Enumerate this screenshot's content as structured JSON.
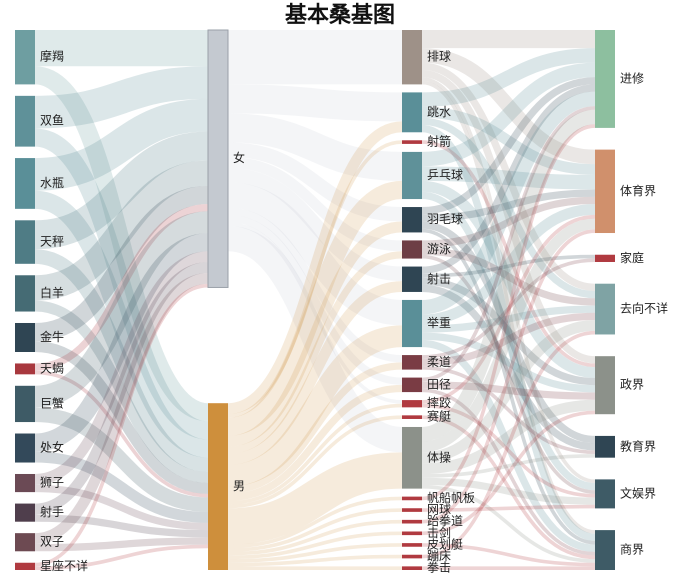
{
  "chart_data": {
    "type": "sankey",
    "title": "基本桑基图",
    "columns": [
      [
        "摩羯",
        "双鱼",
        "水瓶",
        "天秤",
        "白羊",
        "金牛",
        "天蝎",
        "巨蟹",
        "处女",
        "狮子",
        "射手",
        "双子",
        "星座不详"
      ],
      [
        "女",
        "男"
      ],
      [
        "排球",
        "跳水",
        "射箭",
        "乒乓球",
        "羽毛球",
        "游泳",
        "射击",
        "举重",
        "柔道",
        "田径",
        "摔跤",
        "赛艇",
        "体操",
        "帆船帆板",
        "网球",
        "跆拳道",
        "击剑",
        "皮划艇",
        "蹦床",
        "拳击"
      ],
      [
        "进修",
        "体育界",
        "家庭",
        "去向不详",
        "政界",
        "教育界",
        "文娱界",
        "商界"
      ]
    ],
    "node_colors": {
      "摩羯": "#6e9ea1",
      "双鱼": "#5f9199",
      "水瓶": "#5a8f98",
      "天秤": "#4f7c85",
      "白羊": "#456b74",
      "金牛": "#2f4553",
      "天蝎": "#a8383e",
      "巨蟹": "#3e5b66",
      "处女": "#33495a",
      "狮子": "#6b4a55",
      "射手": "#4f3e4c",
      "双子": "#6d4a52",
      "星座不详": "#b03a40",
      "女": "#c4c9d0",
      "男": "#ce8f3c",
      "排球": "#9e9188",
      "跳水": "#5a8f98",
      "射箭": "#b03a40",
      "乒乓球": "#5f9199",
      "羽毛球": "#2f4553",
      "游泳": "#6d3e45",
      "射击": "#2f4553",
      "举重": "#5a8f98",
      "柔道": "#7a3c44",
      "田径": "#7a3c44",
      "摔跤": "#b03a40",
      "赛艇": "#b03a40",
      "体操": "#8c918a",
      "帆船帆板": "#b03a40",
      "网球": "#b03a40",
      "跆拳道": "#b03a40",
      "击剑": "#b03a40",
      "皮划艇": "#b03a40",
      "蹦床": "#b03a40",
      "拳击": "#b03a40",
      "进修": "#8dbf9f",
      "体育界": "#d0906c",
      "家庭": "#b03a40",
      "去向不详": "#7fa3a4",
      "政界": "#8c918a",
      "教育界": "#2f4553",
      "文娱界": "#3e5b66",
      "商界": "#3e5b66"
    },
    "links": [
      [
        "摩羯",
        "女",
        10
      ],
      [
        "摩羯",
        "男",
        5
      ],
      [
        "双鱼",
        "女",
        9
      ],
      [
        "双鱼",
        "男",
        5
      ],
      [
        "水瓶",
        "女",
        9
      ],
      [
        "水瓶",
        "男",
        5
      ],
      [
        "天秤",
        "女",
        8
      ],
      [
        "天秤",
        "男",
        4
      ],
      [
        "白羊",
        "女",
        7
      ],
      [
        "白羊",
        "男",
        3
      ],
      [
        "金牛",
        "女",
        5
      ],
      [
        "金牛",
        "男",
        3
      ],
      [
        "天蝎",
        "女",
        2
      ],
      [
        "天蝎",
        "男",
        1
      ],
      [
        "巨蟹",
        "女",
        6
      ],
      [
        "巨蟹",
        "男",
        4
      ],
      [
        "处女",
        "女",
        5
      ],
      [
        "处女",
        "男",
        3
      ],
      [
        "狮子",
        "女",
        3
      ],
      [
        "狮子",
        "男",
        2
      ],
      [
        "射手",
        "女",
        3
      ],
      [
        "射手",
        "男",
        2
      ],
      [
        "双子",
        "女",
        3
      ],
      [
        "双子",
        "男",
        2
      ],
      [
        "星座不详",
        "女",
        1
      ],
      [
        "星座不详",
        "男",
        1
      ],
      [
        "女",
        "排球",
        15
      ],
      [
        "女",
        "跳水",
        8
      ],
      [
        "女",
        "乒乓球",
        8
      ],
      [
        "女",
        "羽毛球",
        4
      ],
      [
        "女",
        "游泳",
        3
      ],
      [
        "女",
        "射击",
        4
      ],
      [
        "女",
        "举重",
        7
      ],
      [
        "女",
        "柔道",
        2
      ],
      [
        "女",
        "田径",
        2
      ],
      [
        "女",
        "摔跤",
        1
      ],
      [
        "女",
        "体操",
        7
      ],
      [
        "男",
        "跳水",
        3
      ],
      [
        "男",
        "射箭",
        1
      ],
      [
        "男",
        "乒乓球",
        5
      ],
      [
        "男",
        "羽毛球",
        3
      ],
      [
        "男",
        "游泳",
        2
      ],
      [
        "男",
        "射击",
        3
      ],
      [
        "男",
        "举重",
        6
      ],
      [
        "男",
        "柔道",
        2
      ],
      [
        "男",
        "田径",
        2
      ],
      [
        "男",
        "摔跤",
        1
      ],
      [
        "男",
        "赛艇",
        1
      ],
      [
        "男",
        "体操",
        10
      ],
      [
        "男",
        "帆船帆板",
        1
      ],
      [
        "男",
        "网球",
        1
      ],
      [
        "男",
        "跆拳道",
        1
      ],
      [
        "男",
        "击剑",
        1
      ],
      [
        "男",
        "皮划艇",
        1
      ],
      [
        "男",
        "蹦床",
        1
      ],
      [
        "男",
        "拳击",
        1
      ],
      [
        "排球",
        "进修",
        5
      ],
      [
        "排球",
        "体育界",
        4
      ],
      [
        "排球",
        "去向不详",
        2
      ],
      [
        "排球",
        "政界",
        2
      ],
      [
        "排球",
        "文娱界",
        1
      ],
      [
        "排球",
        "商界",
        1
      ],
      [
        "跳水",
        "进修",
        4
      ],
      [
        "跳水",
        "体育界",
        3
      ],
      [
        "跳水",
        "去向不详",
        2
      ],
      [
        "跳水",
        "商界",
        2
      ],
      [
        "射箭",
        "政界",
        1
      ],
      [
        "乒乓球",
        "进修",
        4
      ],
      [
        "乒乓球",
        "体育界",
        4
      ],
      [
        "乒乓球",
        "政界",
        3
      ],
      [
        "乒乓球",
        "文娱界",
        2
      ],
      [
        "羽毛球",
        "进修",
        2
      ],
      [
        "羽毛球",
        "体育界",
        2
      ],
      [
        "羽毛球",
        "教育界",
        2
      ],
      [
        "羽毛球",
        "商界",
        1
      ],
      [
        "游泳",
        "体育界",
        2
      ],
      [
        "游泳",
        "去向不详",
        2
      ],
      [
        "游泳",
        "文娱界",
        1
      ],
      [
        "射击",
        "进修",
        2
      ],
      [
        "射击",
        "政界",
        2
      ],
      [
        "射击",
        "教育界",
        2
      ],
      [
        "射击",
        "家庭",
        1
      ],
      [
        "举重",
        "进修",
        4
      ],
      [
        "举重",
        "体育界",
        3
      ],
      [
        "举重",
        "去向不详",
        2
      ],
      [
        "举重",
        "政界",
        2
      ],
      [
        "举重",
        "商界",
        2
      ],
      [
        "柔道",
        "去向不详",
        2
      ],
      [
        "柔道",
        "教育界",
        1
      ],
      [
        "柔道",
        "家庭",
        1
      ],
      [
        "田径",
        "进修",
        1
      ],
      [
        "田径",
        "政界",
        2
      ],
      [
        "田径",
        "商界",
        1
      ],
      [
        "摔跤",
        "体育界",
        1
      ],
      [
        "摔跤",
        "文娱界",
        1
      ],
      [
        "赛艇",
        "商界",
        1
      ],
      [
        "体操",
        "进修",
        4
      ],
      [
        "体操",
        "体育界",
        3
      ],
      [
        "体操",
        "去向不详",
        3
      ],
      [
        "体操",
        "政界",
        3
      ],
      [
        "体操",
        "教育界",
        1
      ],
      [
        "体操",
        "文娱界",
        2
      ],
      [
        "体操",
        "商界",
        1
      ],
      [
        "帆船帆板",
        "进修",
        1
      ],
      [
        "网球",
        "文娱界",
        1
      ],
      [
        "跆拳道",
        "体育界",
        1
      ],
      [
        "击剑",
        "政界",
        1
      ],
      [
        "皮划艇",
        "商界",
        1
      ],
      [
        "蹦床",
        "去向不详",
        1
      ],
      [
        "拳击",
        "商界",
        1
      ]
    ]
  }
}
